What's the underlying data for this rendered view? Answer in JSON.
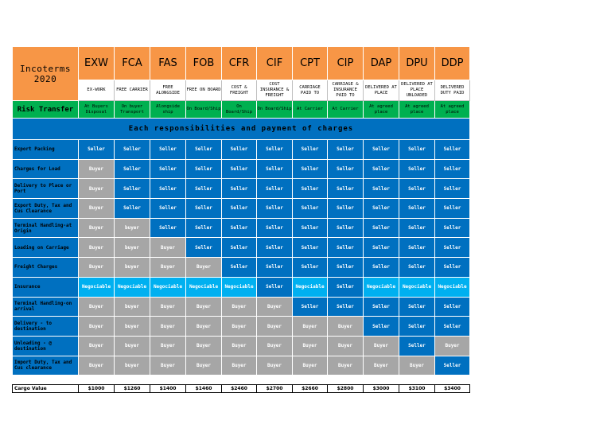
{
  "title": "Incoterms 2020",
  "terms": [
    {
      "code": "EXW",
      "full": "EX-WORK",
      "risk": "At Buyers Disposal"
    },
    {
      "code": "FCA",
      "full": "FREE CARRIER",
      "risk": "On buyer Transport"
    },
    {
      "code": "FAS",
      "full": "FREE ALONGSIDE",
      "risk": "Alongside ship"
    },
    {
      "code": "FOB",
      "full": "FREE ON BOARD",
      "risk": "On Board/Ship"
    },
    {
      "code": "CFR",
      "full": "COST & FREIGHT",
      "risk": "On Board/Ship"
    },
    {
      "code": "CIF",
      "full": "COST INSURANCE & FREIGHT",
      "risk": "On Board/Ship"
    },
    {
      "code": "CPT",
      "full": "CARRIAGE PAID TO",
      "risk": "At Carrier"
    },
    {
      "code": "CIP",
      "full": "CARRIAGE & INSURANCE PAID TO",
      "risk": "At Carrier"
    },
    {
      "code": "DAP",
      "full": "DELIVERED AT PLACE",
      "risk": "At agreed place"
    },
    {
      "code": "DPU",
      "full": "DELIVERED AT PLACE UNLOADED",
      "risk": "At agreed place"
    },
    {
      "code": "DDP",
      "full": "DELIVERED DUTY PAID",
      "risk": "At agreed place"
    }
  ],
  "risk_label": "Risk Transfer",
  "band_title": "Each responsibilities and payment of charges",
  "rows": [
    {
      "label": "Export Packing",
      "cells": [
        "Seller",
        "Seller",
        "Seller",
        "Seller",
        "Seller",
        "Seller",
        "Seller",
        "Seller",
        "Seller",
        "Seller",
        "Seller"
      ]
    },
    {
      "label": "Charges for Load",
      "cells": [
        "Buyer",
        "Seller",
        "Seller",
        "Seller",
        "Seller",
        "Seller",
        "Seller",
        "Seller",
        "Seller",
        "Seller",
        "Seller"
      ]
    },
    {
      "label": "Delivery to Place or Port",
      "cells": [
        "Buyer",
        "Seller",
        "Seller",
        "Seller",
        "Seller",
        "Seller",
        "Seller",
        "Seller",
        "Seller",
        "Seller",
        "Seller"
      ]
    },
    {
      "label": "Export Duty, Tax and Cus Clearance",
      "cells": [
        "Buyer",
        "Seller",
        "Seller",
        "Seller",
        "Seller",
        "Seller",
        "Seller",
        "Seller",
        "Seller",
        "Seller",
        "Seller"
      ]
    },
    {
      "label": "Terminal Handling-at Origin",
      "cells": [
        "Buyer",
        "buyer",
        "Seller",
        "Seller",
        "Seller",
        "Seller",
        "Seller",
        "Seller",
        "Seller",
        "Seller",
        "Seller"
      ]
    },
    {
      "label": "Loading on Carriage",
      "cells": [
        "Buyer",
        "buyer",
        "Buyer",
        "Seller",
        "Seller",
        "Seller",
        "Seller",
        "Seller",
        "Seller",
        "Seller",
        "Seller"
      ]
    },
    {
      "label": "Freight Charges",
      "cells": [
        "Buyer",
        "buyer",
        "Buyer",
        "Buyer",
        "Seller",
        "Seller",
        "Seller",
        "Seller",
        "Seller",
        "Seller",
        "Seller"
      ]
    },
    {
      "label": "Insurance",
      "cells": [
        "Negociable",
        "Negociable",
        "Negociable",
        "Negociable",
        "Negociable",
        "Seller",
        "Negociable",
        "Seller",
        "Negociable",
        "Negociable",
        "Negociable"
      ]
    },
    {
      "label": "Terminal Handling-on arrival",
      "cells": [
        "Buyer",
        "buyer",
        "Buyer",
        "Buyer",
        "Buyer",
        "Buyer",
        "Seller",
        "Seller",
        "Seller",
        "Seller",
        "Seller"
      ]
    },
    {
      "label": "Delivery - to destination",
      "cells": [
        "Buyer",
        "buyer",
        "Buyer",
        "Buyer",
        "Buyer",
        "Buyer",
        "Buyer",
        "Buyer",
        "Seller",
        "Seller",
        "Seller"
      ]
    },
    {
      "label": "Unloading - @ destination",
      "cells": [
        "Buyer",
        "buyer",
        "Buyer",
        "Buyer",
        "Buyer",
        "Buyer",
        "Buyer",
        "Buyer",
        "Buyer",
        "Seller",
        "Buyer"
      ]
    },
    {
      "label": "Import Duty, Tax and Cus clearance",
      "cells": [
        "Buyer",
        "buyer",
        "Buyer",
        "Buyer",
        "Buyer",
        "Buyer",
        "Buyer",
        "Buyer",
        "Buyer",
        "Buyer",
        "Seller"
      ]
    }
  ],
  "cargo": {
    "label": "Cargo Value",
    "values": [
      "$1000",
      "$1260",
      "$1400",
      "$1460",
      "$2460",
      "$2700",
      "$2660",
      "$2800",
      "$3000",
      "$3100",
      "$3400"
    ]
  },
  "colors": {
    "header": "#f79646",
    "risk": "#00b050",
    "seller": "#0070c0",
    "buyer": "#a6a6a6",
    "negotiable": "#00b0f0"
  }
}
